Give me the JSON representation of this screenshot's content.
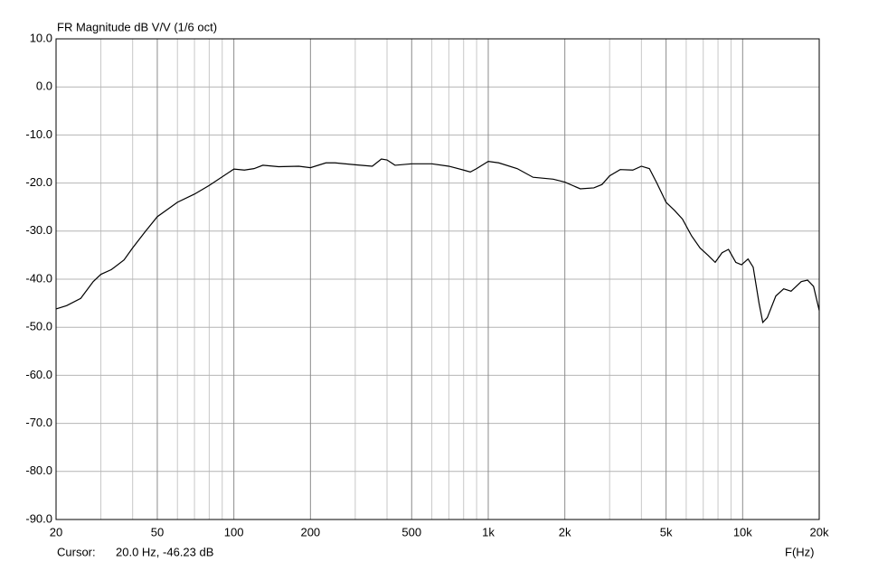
{
  "chart_data": {
    "type": "line",
    "title": "FR Magnitude dB V/V (1/6 oct)",
    "x_label": "F(Hz)",
    "cursor_label": "Cursor:",
    "cursor_value": "20.0 Hz, -46.23 dB",
    "x_log": true,
    "grid": true,
    "xlim": [
      20,
      20000
    ],
    "xticks": [
      20,
      50,
      100,
      200,
      500,
      {
        "value": 1000,
        "label": "1k"
      },
      {
        "value": 2000,
        "label": "2k"
      },
      {
        "value": 5000,
        "label": "5k"
      },
      {
        "value": 10000,
        "label": "10k"
      },
      {
        "value": 20000,
        "label": "20k"
      }
    ],
    "xgrid": [
      30,
      40,
      60,
      70,
      80,
      90,
      300,
      400,
      600,
      700,
      800,
      900,
      3000,
      4000,
      6000,
      7000,
      8000,
      9000
    ],
    "ylim": [
      -90,
      10
    ],
    "yticks": [
      {
        "value": 10,
        "label": "10.0"
      },
      {
        "value": 0,
        "label": "0.0"
      },
      {
        "value": -10,
        "label": "-10.0"
      },
      {
        "value": -20,
        "label": "-20.0"
      },
      {
        "value": -30,
        "label": "-30.0"
      },
      {
        "value": -40,
        "label": "-40.0"
      },
      {
        "value": -50,
        "label": "-50.0"
      },
      {
        "value": -60,
        "label": "-60.0"
      },
      {
        "value": -70,
        "label": "-70.0"
      },
      {
        "value": -80,
        "label": "-80.0"
      },
      {
        "value": -90,
        "label": "-90.0"
      }
    ],
    "series": [
      {
        "color": "#000000",
        "x": [
          20,
          22,
          25,
          28,
          30,
          33,
          37,
          40,
          45,
          50,
          60,
          70,
          80,
          100,
          110,
          120,
          130,
          150,
          180,
          200,
          230,
          250,
          300,
          350,
          380,
          400,
          430,
          500,
          600,
          700,
          800,
          850,
          900,
          1000,
          1100,
          1300,
          1500,
          1800,
          2000,
          2300,
          2600,
          2800,
          3000,
          3300,
          3700,
          4000,
          4300,
          4600,
          5000,
          5400,
          5800,
          6300,
          6800,
          7300,
          7800,
          8300,
          8800,
          9400,
          9900,
          10500,
          11000,
          11600,
          12000,
          12500,
          13500,
          14500,
          15500,
          17000,
          18000,
          19000,
          20000
        ],
        "values": [
          -46.2,
          -45.5,
          -44,
          -40.5,
          -39,
          -38,
          -36,
          -33.5,
          -30,
          -27,
          -24,
          -22.3,
          -20.5,
          -17.1,
          -17.3,
          -17,
          -16.3,
          -16.6,
          -16.5,
          -16.8,
          -15.8,
          -15.8,
          -16.2,
          -16.5,
          -15,
          -15.2,
          -16.3,
          -16,
          -16,
          -16.5,
          -17.3,
          -17.7,
          -17,
          -15.5,
          -15.8,
          -17,
          -18.8,
          -19.2,
          -19.8,
          -21.2,
          -21,
          -20.3,
          -18.5,
          -17.2,
          -17.3,
          -16.5,
          -17,
          -20,
          -24,
          -25.7,
          -27.5,
          -31,
          -33.5,
          -35,
          -36.5,
          -34.5,
          -33.8,
          -36.5,
          -37,
          -35.8,
          -37.5,
          -45,
          -49,
          -48,
          -43.5,
          -42,
          -42.5,
          -40.5,
          -40.2,
          -41.5,
          -46.5
        ]
      }
    ]
  }
}
